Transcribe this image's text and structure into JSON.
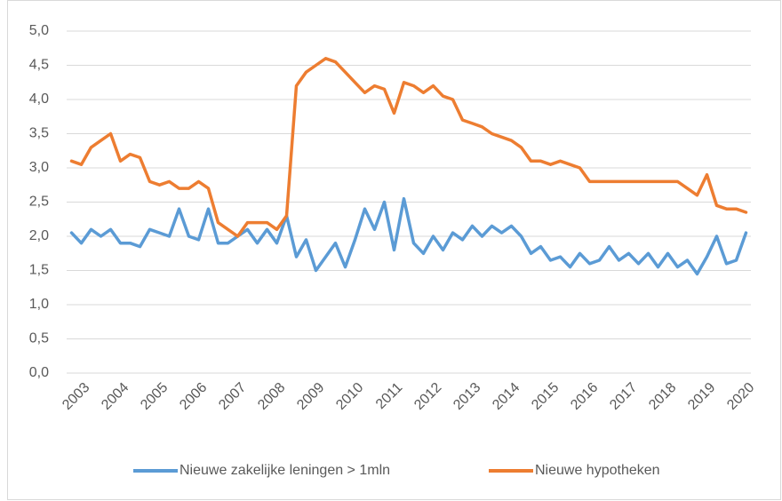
{
  "chart_data": {
    "type": "line",
    "categories": [
      "2003",
      null,
      null,
      null,
      "2004",
      null,
      null,
      null,
      "2005",
      null,
      null,
      null,
      "2006",
      null,
      null,
      null,
      "2007",
      null,
      null,
      null,
      "2008",
      null,
      null,
      null,
      "2009",
      null,
      null,
      null,
      "2010",
      null,
      null,
      null,
      "2011",
      null,
      null,
      null,
      "2012",
      null,
      null,
      null,
      "2013",
      null,
      null,
      null,
      "2014",
      null,
      null,
      null,
      "2015",
      null,
      null,
      null,
      "2016",
      null,
      null,
      null,
      "2017",
      null,
      null,
      null,
      "2018",
      null,
      null,
      null,
      "2019",
      null,
      null,
      null,
      "2020",
      null
    ],
    "series": [
      {
        "name": "Nieuwe zakelijke leningen > 1mln",
        "color": "#5b9bd5",
        "values": [
          2.05,
          1.9,
          2.1,
          2.0,
          2.1,
          1.9,
          1.9,
          1.85,
          2.1,
          2.05,
          2.0,
          2.4,
          2.0,
          1.95,
          2.4,
          1.9,
          1.9,
          2.0,
          2.1,
          1.9,
          2.1,
          1.9,
          2.3,
          1.7,
          1.95,
          1.5,
          1.7,
          1.9,
          1.55,
          1.95,
          2.4,
          2.1,
          2.5,
          1.8,
          2.55,
          1.9,
          1.75,
          2.0,
          1.8,
          2.05,
          1.95,
          2.15,
          2.0,
          2.15,
          2.05,
          2.15,
          2.0,
          1.75,
          1.85,
          1.65,
          1.7,
          1.55,
          1.75,
          1.6,
          1.65,
          1.85,
          1.65,
          1.75,
          1.6,
          1.75,
          1.55,
          1.75,
          1.55,
          1.65,
          1.45,
          1.7,
          2.0,
          1.6,
          1.65,
          2.05
        ]
      },
      {
        "name": "Nieuwe hypotheken",
        "color": "#ed7d31",
        "values": [
          3.1,
          3.05,
          3.3,
          3.4,
          3.5,
          3.1,
          3.2,
          3.15,
          2.8,
          2.75,
          2.8,
          2.7,
          2.7,
          2.8,
          2.7,
          2.2,
          2.1,
          2.0,
          2.2,
          2.2,
          2.2,
          2.1,
          2.3,
          4.2,
          4.4,
          4.5,
          4.6,
          4.55,
          4.4,
          4.25,
          4.1,
          4.2,
          4.15,
          3.8,
          4.25,
          4.2,
          4.1,
          4.2,
          4.05,
          4.0,
          3.7,
          3.65,
          3.6,
          3.5,
          3.45,
          3.4,
          3.3,
          3.1,
          3.1,
          3.05,
          3.1,
          3.05,
          3.0,
          2.8,
          2.8,
          2.8,
          2.8,
          2.8,
          2.8,
          2.8,
          2.8,
          2.8,
          2.8,
          2.7,
          2.6,
          2.9,
          2.45,
          2.4,
          2.4,
          2.35
        ]
      }
    ],
    "ylim": [
      0,
      5
    ],
    "yticks": [
      {
        "value": 0,
        "label": "0,0"
      },
      {
        "value": 0.5,
        "label": "0,5"
      },
      {
        "value": 1,
        "label": "1,0"
      },
      {
        "value": 1.5,
        "label": "1,5"
      },
      {
        "value": 2,
        "label": "2,0"
      },
      {
        "value": 2.5,
        "label": "2,5"
      },
      {
        "value": 3,
        "label": "3,0"
      },
      {
        "value": 3.5,
        "label": "3,5"
      },
      {
        "value": 4,
        "label": "4,0"
      },
      {
        "value": 4.5,
        "label": "4,5"
      },
      {
        "value": 5,
        "label": "5,0"
      }
    ],
    "grid": true,
    "legend": "bottom"
  }
}
